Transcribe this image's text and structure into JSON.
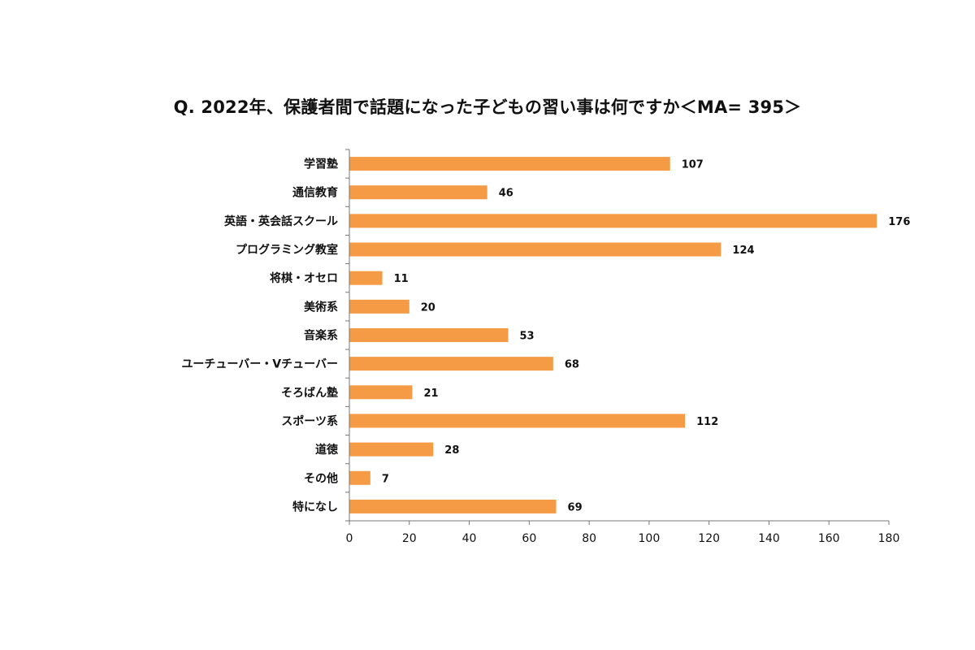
{
  "chart_data": {
    "type": "bar",
    "orientation": "horizontal",
    "title": "Q. 2022年、保護者間で話題になった子どもの習い事は何ですか＜MA= 395＞",
    "categories": [
      "学習塾",
      "通信教育",
      "英語・英会話スクール",
      "プログラミング教室",
      "将棋・オセロ",
      "美術系",
      "音楽系",
      "ユーチューバー・Vチューバー",
      "そろばん塾",
      "スポーツ系",
      "道徳",
      "その他",
      "特になし"
    ],
    "values": [
      107,
      46,
      176,
      124,
      11,
      20,
      53,
      68,
      21,
      112,
      28,
      7,
      69
    ],
    "xlim": [
      0,
      180
    ],
    "xticks": [
      0,
      20,
      40,
      60,
      80,
      100,
      120,
      140,
      160,
      180
    ],
    "xlabel": "",
    "ylabel": "",
    "grid": false,
    "legend": "none",
    "bar_color": "#f59a45"
  }
}
